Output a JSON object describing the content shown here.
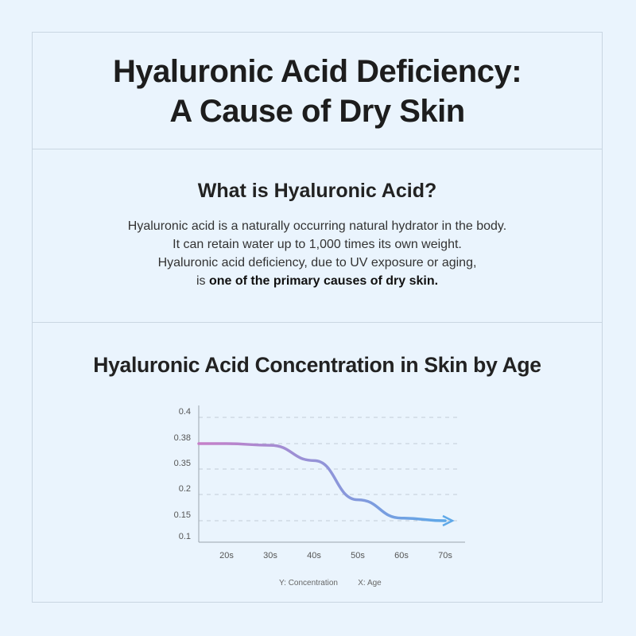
{
  "header": {
    "title_line1": "Hyaluronic Acid Deficiency:",
    "title_line2": "A Cause of Dry Skin"
  },
  "intro": {
    "heading": "What is Hyaluronic Acid?",
    "lines": [
      "Hyaluronic acid is a naturally occurring natural hydrator in the body.",
      "It can retain water up to 1,000 times its own weight.",
      "Hyaluronic acid deficiency, due to UV exposure or aging,"
    ],
    "last_prefix": "is ",
    "last_bold": "one of the primary causes of dry skin."
  },
  "chart_data": {
    "type": "line",
    "title": "Hyaluronic Acid Concentration in Skin by Age",
    "categories": [
      "20s",
      "30s",
      "40s",
      "50s",
      "60s",
      "70s"
    ],
    "y_ticks": [
      "0.4",
      "0.38",
      "0.35",
      "0.2",
      "0.15",
      "0.1"
    ],
    "values": [
      0.38,
      0.378,
      0.36,
      0.19,
      0.155,
      0.15
    ],
    "legend_y": "Y: Concentration",
    "legend_x": "X: Age",
    "grid": "dashed horizontal",
    "line_colors": [
      "#c67fc8",
      "#5ea8e8"
    ]
  }
}
